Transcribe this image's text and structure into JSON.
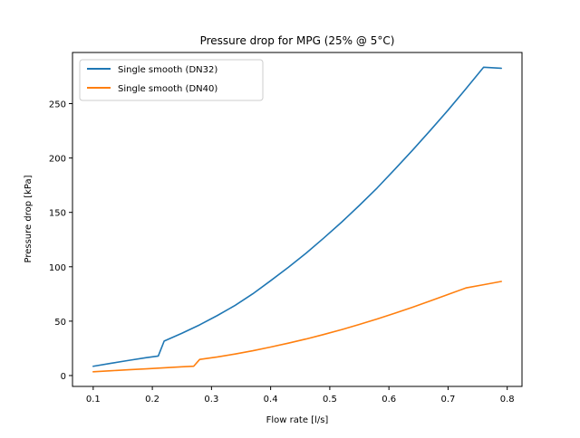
{
  "chart_data": {
    "type": "line",
    "title": "Pressure drop for MPG (25% @ 5°C)",
    "xlabel": "Flow rate [l/s]",
    "ylabel": "Pressure drop [kPa]",
    "xlim": [
      0.065,
      0.825
    ],
    "ylim": [
      -10,
      297
    ],
    "xticks": [
      0.1,
      0.2,
      0.3,
      0.4,
      0.5,
      0.6,
      0.7,
      0.8
    ],
    "yticks": [
      0,
      50,
      100,
      150,
      200,
      250
    ],
    "grid": false,
    "legend_position": "upper-left",
    "series": [
      {
        "name": "Single smooth (DN32)",
        "color": "#1f77b4",
        "points": [
          [
            0.1,
            8.5
          ],
          [
            0.13,
            11.3
          ],
          [
            0.16,
            13.9
          ],
          [
            0.19,
            16.5
          ],
          [
            0.21,
            17.9
          ],
          [
            0.22,
            31.7
          ],
          [
            0.25,
            38.9
          ],
          [
            0.28,
            46.6
          ],
          [
            0.31,
            55.2
          ],
          [
            0.34,
            64.5
          ],
          [
            0.37,
            75.2
          ],
          [
            0.4,
            87.2
          ],
          [
            0.43,
            99.5
          ],
          [
            0.46,
            112.5
          ],
          [
            0.49,
            126.5
          ],
          [
            0.52,
            141.0
          ],
          [
            0.55,
            156.4
          ],
          [
            0.58,
            172.4
          ],
          [
            0.61,
            189.6
          ],
          [
            0.64,
            207.2
          ],
          [
            0.67,
            225.4
          ],
          [
            0.7,
            244.0
          ],
          [
            0.73,
            263.5
          ],
          [
            0.76,
            283.4
          ],
          [
            0.79,
            282.5
          ]
        ]
      },
      {
        "name": "Single smooth (DN40)",
        "color": "#ff7f0e",
        "points": [
          [
            0.1,
            3.5
          ],
          [
            0.13,
            4.4
          ],
          [
            0.16,
            5.3
          ],
          [
            0.19,
            6.2
          ],
          [
            0.22,
            7.1
          ],
          [
            0.25,
            8.0
          ],
          [
            0.27,
            8.6
          ],
          [
            0.28,
            14.8
          ],
          [
            0.31,
            17.1
          ],
          [
            0.34,
            19.8
          ],
          [
            0.37,
            22.8
          ],
          [
            0.4,
            26.2
          ],
          [
            0.43,
            29.8
          ],
          [
            0.46,
            33.6
          ],
          [
            0.49,
            37.8
          ],
          [
            0.52,
            42.2
          ],
          [
            0.55,
            47.0
          ],
          [
            0.58,
            52.0
          ],
          [
            0.61,
            57.3
          ],
          [
            0.64,
            62.8
          ],
          [
            0.67,
            68.6
          ],
          [
            0.7,
            74.5
          ],
          [
            0.73,
            80.5
          ],
          [
            0.76,
            83.5
          ],
          [
            0.79,
            86.5
          ]
        ]
      }
    ]
  }
}
